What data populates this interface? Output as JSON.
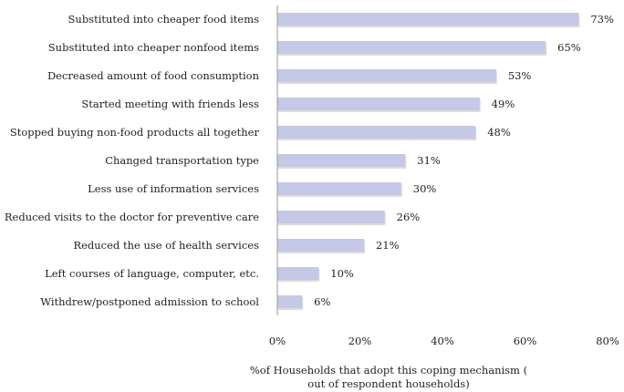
{
  "chart_data": {
    "type": "bar",
    "orientation": "horizontal",
    "categories": [
      "Substituted into cheaper food items",
      "Substituted into cheaper nonfood  items",
      "Decreased amount of food  consumption",
      "Started meeting with friends less",
      "Stopped buying  non-food  products all together",
      "Changed transportation type",
      "Less use of information services",
      "Reduced visits to the doctor for preventive care",
      "Reduced the use of health services",
      "Left courses of  language, computer, etc.",
      "Withdrew/postponed admission to school"
    ],
    "values": [
      73,
      65,
      53,
      49,
      48,
      31,
      30,
      26,
      21,
      10,
      6
    ],
    "data_labels": [
      "73%",
      "65%",
      "53%",
      "49%",
      "48%",
      "31%",
      "30%",
      "26%",
      "21%",
      "10%",
      "6%"
    ],
    "xlim": [
      0,
      80
    ],
    "xticks": [
      "0%",
      "20%",
      "40%",
      "60%",
      "80%"
    ],
    "xlabel_line1": "%of Households that adopt this coping mechanism (",
    "xlabel_line2": "out of respondent households)",
    "bar_color": "#c5c8e6",
    "grid": false
  }
}
